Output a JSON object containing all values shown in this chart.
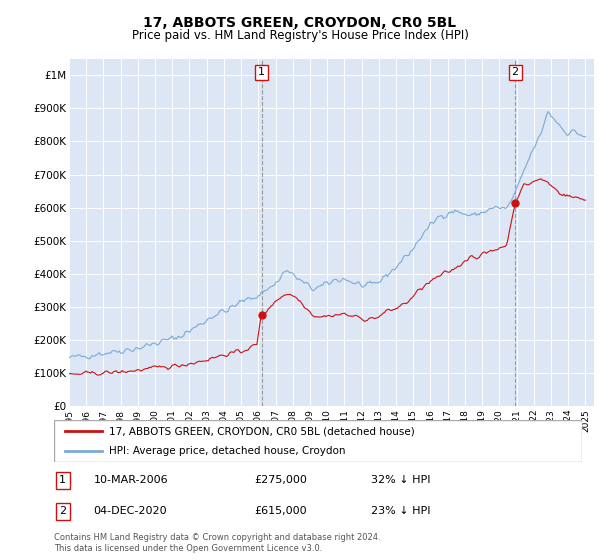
{
  "title": "17, ABBOTS GREEN, CROYDON, CR0 5BL",
  "subtitle": "Price paid vs. HM Land Registry's House Price Index (HPI)",
  "red_line_label": "17, ABBOTS GREEN, CROYDON, CR0 5BL (detached house)",
  "blue_line_label": "HPI: Average price, detached house, Croydon",
  "annotation1_date": "10-MAR-2006",
  "annotation1_price": "£275,000",
  "annotation1_hpi": "32% ↓ HPI",
  "annotation1_year": 2006.19,
  "annotation1_value": 275000,
  "annotation2_date": "04-DEC-2020",
  "annotation2_price": "£615,000",
  "annotation2_hpi": "23% ↓ HPI",
  "annotation2_year": 2020.92,
  "annotation2_value": 615000,
  "footnote": "Contains HM Land Registry data © Crown copyright and database right 2024.\nThis data is licensed under the Open Government Licence v3.0.",
  "ylim": [
    0,
    1050000
  ],
  "yticks": [
    0,
    100000,
    200000,
    300000,
    400000,
    500000,
    600000,
    700000,
    800000,
    900000,
    1000000
  ],
  "ytick_labels": [
    "£0",
    "£100K",
    "£200K",
    "£300K",
    "£400K",
    "£500K",
    "£600K",
    "£700K",
    "£800K",
    "£900K",
    "£1M"
  ],
  "xlim_start": 1995.0,
  "xlim_end": 2025.5,
  "plot_bg_color": "#dce6f5",
  "grid_color": "#ffffff",
  "red_color": "#cc1111",
  "blue_color": "#7baad4"
}
